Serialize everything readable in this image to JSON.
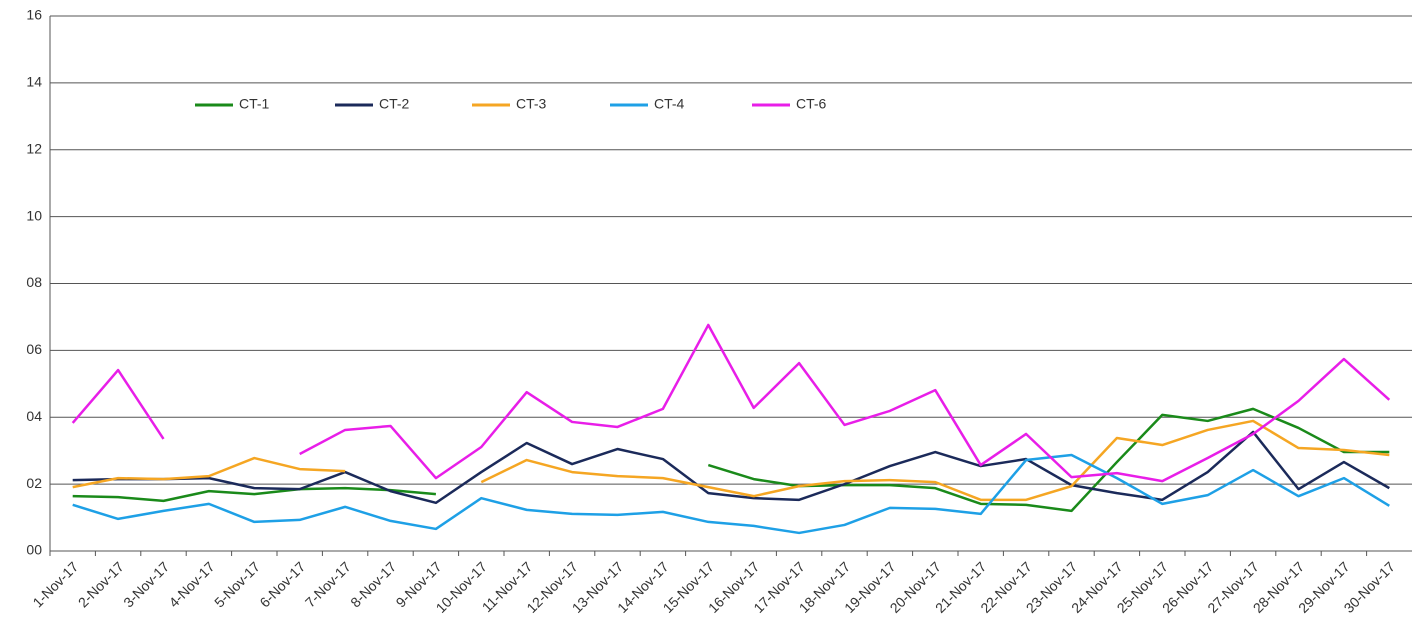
{
  "chart_data": {
    "type": "line",
    "categories": [
      "1-Nov-17",
      "2-Nov-17",
      "3-Nov-17",
      "4-Nov-17",
      "5-Nov-17",
      "6-Nov-17",
      "7-Nov-17",
      "8-Nov-17",
      "9-Nov-17",
      "10-Nov-17",
      "11-Nov-17",
      "12-Nov-17",
      "13-Nov-17",
      "14-Nov-17",
      "15-Nov-17",
      "16-Nov-17",
      "17-Nov-17",
      "18-Nov-17",
      "19-Nov-17",
      "20-Nov-17",
      "21-Nov-17",
      "22-Nov-17",
      "23-Nov-17",
      "24-Nov-17",
      "25-Nov-17",
      "26-Nov-17",
      "27-Nov-17",
      "28-Nov-17",
      "29-Nov-17",
      "30-Nov-17"
    ],
    "series": [
      {
        "name": "CT-1",
        "color": "#1a8a1a",
        "values": [
          1.64,
          1.61,
          1.5,
          1.79,
          1.7,
          1.85,
          1.88,
          1.82,
          1.7,
          null,
          null,
          null,
          null,
          null,
          2.57,
          2.15,
          1.94,
          1.97,
          1.97,
          1.88,
          1.41,
          1.38,
          1.2,
          2.66,
          4.07,
          3.89,
          4.25,
          3.68,
          2.96,
          2.96
        ]
      },
      {
        "name": "CT-2",
        "color": "#1b2a5a",
        "values": [
          2.12,
          2.15,
          2.15,
          2.18,
          1.88,
          1.85,
          2.36,
          1.79,
          1.44,
          2.36,
          3.23,
          2.6,
          3.05,
          2.75,
          1.73,
          1.58,
          1.53,
          2.0,
          2.54,
          2.96,
          2.54,
          2.75,
          1.97,
          1.73,
          1.53,
          2.36,
          3.56,
          1.85,
          2.66,
          1.88
        ]
      },
      {
        "name": "CT-3",
        "color": "#f5a623",
        "values": [
          1.91,
          2.18,
          2.15,
          2.24,
          2.78,
          2.45,
          2.39,
          null,
          null,
          2.06,
          2.72,
          2.36,
          2.24,
          2.18,
          1.91,
          1.64,
          1.94,
          2.09,
          2.12,
          2.06,
          1.53,
          1.53,
          1.94,
          3.38,
          3.17,
          3.62,
          3.89,
          3.08,
          3.02,
          2.87
        ]
      },
      {
        "name": "CT-4",
        "color": "#1ea0e6",
        "values": [
          1.38,
          0.96,
          1.2,
          1.41,
          0.87,
          0.93,
          1.32,
          0.9,
          0.66,
          1.58,
          1.23,
          1.11,
          1.08,
          1.17,
          0.87,
          0.75,
          0.54,
          0.78,
          1.29,
          1.26,
          1.11,
          2.72,
          2.87,
          2.18,
          1.41,
          1.67,
          2.42,
          1.64,
          2.18,
          1.35
        ]
      },
      {
        "name": "CT-6",
        "color": "#e81ee8",
        "values": [
          3.83,
          5.41,
          3.35,
          null,
          null,
          2.9,
          3.62,
          3.74,
          2.18,
          3.11,
          4.75,
          3.86,
          3.71,
          4.25,
          6.76,
          4.28,
          5.62,
          3.77,
          4.19,
          4.81,
          2.57,
          3.5,
          2.21,
          2.33,
          2.09,
          2.78,
          3.5,
          4.49,
          5.74,
          4.52
        ]
      }
    ],
    "ylim": [
      0,
      16
    ],
    "yticks": [
      {
        "value": 0,
        "label": "00"
      },
      {
        "value": 2,
        "label": "02"
      },
      {
        "value": 4,
        "label": "04"
      },
      {
        "value": 6,
        "label": "06"
      },
      {
        "value": 8,
        "label": "08"
      },
      10,
      12,
      14,
      16
    ],
    "grid": true
  }
}
